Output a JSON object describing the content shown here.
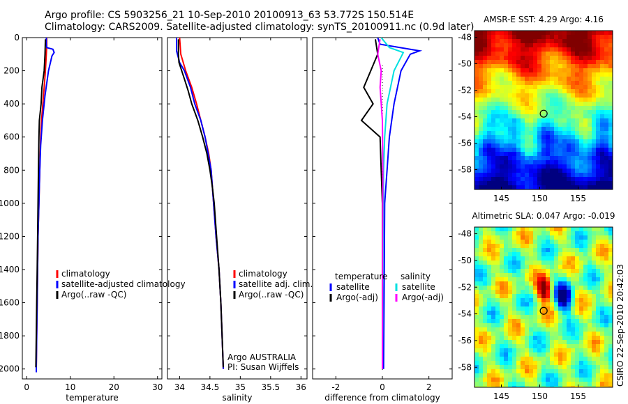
{
  "title": {
    "line1": "Argo profile: CS 5903256_21 10-Sep-2010 20100913_63 53.772S 150.514E",
    "line2": "Climatology: CARS2009. Satellite-adjusted climatology: synTS_20100911.nc (0.9d later)"
  },
  "colors": {
    "climatology": "#ff0000",
    "satellite": "#0000ff",
    "argo": "#000000",
    "cyan": "#00e0e0",
    "magenta": "#ff00ff"
  },
  "side_label": "CSIRO 22-Sep-2010 20:42:03",
  "profile_note": {
    "line1": "Argo AUSTRALIA",
    "line2": "PI: Susan Wijffels"
  },
  "chart_data": [
    {
      "id": "temperature",
      "type": "line",
      "xlabel": "temperature",
      "ylabel": "",
      "xlim": [
        -1,
        31
      ],
      "ylim": [
        2060,
        0
      ],
      "xticks": [
        "0",
        "10",
        "20",
        "30"
      ],
      "xtick_values": [
        0,
        10,
        20,
        30
      ],
      "yticks": [
        "0",
        "200",
        "400",
        "600",
        "800",
        "1000",
        "1200",
        "1400",
        "1600",
        "1800",
        "2000"
      ],
      "ytick_values": [
        0,
        200,
        400,
        600,
        800,
        1000,
        1200,
        1400,
        1600,
        1800,
        2000
      ],
      "legend": [
        {
          "label": "climatology",
          "color": "#ff0000"
        },
        {
          "label": "satellite-adjusted climatology",
          "color": "#0000ff"
        },
        {
          "label": "Argo(..raw -QC)",
          "color": "#000000"
        }
      ],
      "series": [
        {
          "name": "climatology",
          "color": "#ff0000",
          "points": [
            [
              4.6,
              0
            ],
            [
              4.6,
              50
            ],
            [
              4.5,
              100
            ],
            [
              4.3,
              200
            ],
            [
              4.0,
              300
            ],
            [
              3.7,
              400
            ],
            [
              3.4,
              500
            ],
            [
              3.2,
              600
            ],
            [
              3.0,
              800
            ],
            [
              2.8,
              1000
            ],
            [
              2.6,
              1200
            ],
            [
              2.5,
              1400
            ],
            [
              2.4,
              1600
            ],
            [
              2.3,
              1800
            ],
            [
              2.2,
              2000
            ]
          ]
        },
        {
          "name": "satellite-adjusted climatology",
          "color": "#0000ff",
          "points": [
            [
              4.5,
              0
            ],
            [
              4.5,
              40
            ],
            [
              4.6,
              60
            ],
            [
              6.0,
              70
            ],
            [
              6.3,
              90
            ],
            [
              5.8,
              110
            ],
            [
              5.0,
              200
            ],
            [
              4.2,
              350
            ],
            [
              3.6,
              500
            ],
            [
              3.2,
              650
            ],
            [
              3.0,
              800
            ],
            [
              2.8,
              1000
            ],
            [
              2.6,
              1200
            ],
            [
              2.5,
              1400
            ],
            [
              2.4,
              1600
            ],
            [
              2.3,
              1800
            ],
            [
              2.2,
              2000
            ],
            [
              2.2,
              2020
            ]
          ]
        },
        {
          "name": "Argo(..raw -QC)",
          "color": "#000000",
          "points": [
            [
              4.3,
              10
            ],
            [
              4.2,
              100
            ],
            [
              4.0,
              200
            ],
            [
              3.5,
              300
            ],
            [
              3.3,
              400
            ],
            [
              2.9,
              500
            ],
            [
              2.8,
              600
            ],
            [
              2.7,
              800
            ],
            [
              2.6,
              1000
            ],
            [
              2.5,
              1200
            ],
            [
              2.4,
              1400
            ],
            [
              2.3,
              1600
            ],
            [
              2.2,
              1800
            ],
            [
              2.1,
              1990
            ]
          ]
        }
      ]
    },
    {
      "id": "salinity",
      "type": "line",
      "xlabel": "salinity",
      "ylabel": "",
      "xlim": [
        33.8,
        36.1
      ],
      "ylim": [
        2060,
        0
      ],
      "xticks": [
        "34",
        "34.5",
        "35",
        "35.5",
        "36"
      ],
      "xtick_values": [
        34,
        34.5,
        35,
        35.5,
        36
      ],
      "legend": [
        {
          "label": "climatology",
          "color": "#ff0000"
        },
        {
          "label": "satellite adj. clim.",
          "color": "#0000ff"
        },
        {
          "label": "Argo(..raw -QC)",
          "color": "#000000"
        }
      ],
      "series": [
        {
          "name": "climatology",
          "color": "#ff0000",
          "points": [
            [
              34.0,
              0
            ],
            [
              34.02,
              100
            ],
            [
              34.1,
              200
            ],
            [
              34.2,
              300
            ],
            [
              34.28,
              400
            ],
            [
              34.35,
              500
            ],
            [
              34.42,
              600
            ],
            [
              34.48,
              700
            ],
            [
              34.52,
              800
            ],
            [
              34.56,
              1000
            ],
            [
              34.6,
              1200
            ],
            [
              34.65,
              1400
            ],
            [
              34.68,
              1600
            ],
            [
              34.7,
              1800
            ],
            [
              34.72,
              2000
            ]
          ]
        },
        {
          "name": "satellite adj. clim.",
          "color": "#0000ff",
          "points": [
            [
              33.95,
              0
            ],
            [
              33.95,
              80
            ],
            [
              34.0,
              150
            ],
            [
              34.08,
              200
            ],
            [
              34.18,
              300
            ],
            [
              34.25,
              400
            ],
            [
              34.35,
              500
            ],
            [
              34.42,
              600
            ],
            [
              34.47,
              700
            ],
            [
              34.52,
              800
            ],
            [
              34.56,
              1000
            ],
            [
              34.6,
              1200
            ],
            [
              34.65,
              1400
            ],
            [
              34.68,
              1600
            ],
            [
              34.7,
              1800
            ],
            [
              34.72,
              2000
            ]
          ]
        },
        {
          "name": "Argo(..raw -QC)",
          "color": "#000000",
          "points": [
            [
              33.98,
              10
            ],
            [
              33.98,
              100
            ],
            [
              33.99,
              150
            ],
            [
              34.08,
              250
            ],
            [
              34.14,
              320
            ],
            [
              34.2,
              400
            ],
            [
              34.3,
              500
            ],
            [
              34.38,
              600
            ],
            [
              34.45,
              700
            ],
            [
              34.5,
              800
            ],
            [
              34.54,
              900
            ],
            [
              34.57,
              1000
            ],
            [
              34.61,
              1200
            ],
            [
              34.65,
              1400
            ],
            [
              34.68,
              1600
            ],
            [
              34.7,
              1800
            ],
            [
              34.72,
              1990
            ]
          ]
        }
      ]
    },
    {
      "id": "difference",
      "type": "line",
      "xlabel": "difference from climatology",
      "ylabel": "",
      "xlim": [
        -3.0,
        3.0
      ],
      "ylim": [
        2060,
        0
      ],
      "xticks": [
        "-2",
        "0",
        "2"
      ],
      "xtick_values": [
        -2,
        0,
        2
      ],
      "legend_groups": [
        {
          "heading": "temperature",
          "items": [
            {
              "label": "satellite",
              "color": "#0000ff"
            },
            {
              "label": "Argo(-adj)",
              "color": "#000000"
            }
          ]
        },
        {
          "heading": "salinity",
          "items": [
            {
              "label": "satellite",
              "color": "#00e0e0"
            },
            {
              "label": "Argo(-adj)",
              "color": "#ff00ff"
            }
          ]
        }
      ],
      "series": [
        {
          "name": "temperature satellite",
          "color": "#0000ff",
          "points": [
            [
              -0.2,
              0
            ],
            [
              -0.1,
              40
            ],
            [
              1.6,
              80
            ],
            [
              1.2,
              100
            ],
            [
              0.8,
              200
            ],
            [
              0.5,
              400
            ],
            [
              0.3,
              600
            ],
            [
              0.2,
              800
            ],
            [
              0.1,
              1000
            ],
            [
              0.08,
              1400
            ],
            [
              0.05,
              2000
            ]
          ]
        },
        {
          "name": "temperature Argo(-adj)",
          "color": "#000000",
          "points": [
            [
              -0.3,
              10
            ],
            [
              -0.2,
              100
            ],
            [
              -0.5,
              200
            ],
            [
              -0.8,
              300
            ],
            [
              -0.4,
              400
            ],
            [
              -0.9,
              500
            ],
            [
              -0.1,
              600
            ],
            [
              -0.05,
              800
            ],
            [
              0.0,
              1000
            ],
            [
              0.0,
              2000
            ]
          ]
        },
        {
          "name": "salinity satellite",
          "color": "#00e0e0",
          "points": [
            [
              -0.05,
              0
            ],
            [
              0.3,
              60
            ],
            [
              0.9,
              90
            ],
            [
              0.5,
              200
            ],
            [
              0.2,
              400
            ],
            [
              0.1,
              600
            ],
            [
              0.05,
              800
            ],
            [
              0.03,
              1200
            ],
            [
              0.0,
              2000
            ]
          ]
        },
        {
          "name": "salinity Argo(-adj)",
          "color": "#ff00ff",
          "points": [
            [
              -0.1,
              10
            ],
            [
              -0.2,
              100
            ],
            [
              -0.05,
              200
            ],
            [
              -0.1,
              300
            ],
            [
              0.0,
              500
            ],
            [
              0.02,
              800
            ],
            [
              0.01,
              1200
            ],
            [
              0.0,
              2000
            ]
          ]
        }
      ]
    },
    {
      "id": "sst_map",
      "type": "heatmap",
      "title": "AMSR-E SST: 4.29 Argo: 4.16",
      "xticks": [
        "145",
        "150",
        "155"
      ],
      "xtick_values": [
        145,
        150,
        155
      ],
      "yticks": [
        "-48",
        "-50",
        "-52",
        "-54",
        "-56",
        "-58"
      ],
      "ytick_values": [
        -48,
        -50,
        -52,
        -54,
        -56,
        -58
      ],
      "xlim": [
        141.5,
        159.5
      ],
      "ylim": [
        -59.5,
        -47.5
      ],
      "marker": {
        "lon": 150.514,
        "lat": -53.772
      }
    },
    {
      "id": "sla_map",
      "type": "heatmap",
      "title": "Altimetric SLA: 0.047 Argo: -0.019",
      "xticks": [
        "145",
        "150",
        "155"
      ],
      "xtick_values": [
        145,
        150,
        155
      ],
      "yticks": [
        "-48",
        "-50",
        "-52",
        "-54",
        "-56",
        "-58"
      ],
      "ytick_values": [
        -48,
        -50,
        -52,
        -54,
        -56,
        -58
      ],
      "xlim": [
        141.5,
        159.5
      ],
      "ylim": [
        -59.5,
        -47.5
      ],
      "marker": {
        "lon": 150.514,
        "lat": -53.772
      }
    }
  ]
}
